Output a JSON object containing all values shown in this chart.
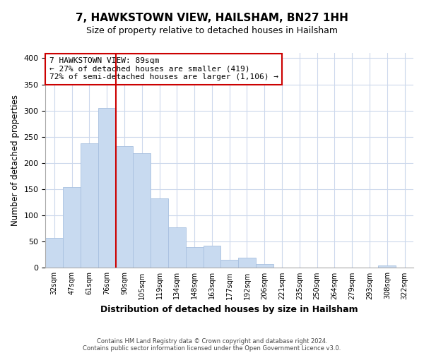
{
  "title": "7, HAWKSTOWN VIEW, HAILSHAM, BN27 1HH",
  "subtitle": "Size of property relative to detached houses in Hailsham",
  "xlabel": "Distribution of detached houses by size in Hailsham",
  "ylabel": "Number of detached properties",
  "bar_labels": [
    "32sqm",
    "47sqm",
    "61sqm",
    "76sqm",
    "90sqm",
    "105sqm",
    "119sqm",
    "134sqm",
    "148sqm",
    "163sqm",
    "177sqm",
    "192sqm",
    "206sqm",
    "221sqm",
    "235sqm",
    "250sqm",
    "264sqm",
    "279sqm",
    "293sqm",
    "308sqm",
    "322sqm"
  ],
  "bar_values": [
    57,
    154,
    238,
    305,
    232,
    219,
    133,
    78,
    40,
    42,
    15,
    20,
    7,
    0,
    0,
    0,
    0,
    0,
    0,
    4,
    0
  ],
  "bar_color": "#c8daf0",
  "bar_edge_color": "#a8c0e0",
  "vline_x": 4,
  "vline_color": "#cc0000",
  "ylim": [
    0,
    410
  ],
  "yticks": [
    0,
    50,
    100,
    150,
    200,
    250,
    300,
    350,
    400
  ],
  "annotation_line1": "7 HAWKSTOWN VIEW: 89sqm",
  "annotation_line2": "← 27% of detached houses are smaller (419)",
  "annotation_line3": "72% of semi-detached houses are larger (1,106) →",
  "annotation_box_edge": "#cc0000",
  "footer_line1": "Contains HM Land Registry data © Crown copyright and database right 2024.",
  "footer_line2": "Contains public sector information licensed under the Open Government Licence v3.0.",
  "background_color": "#ffffff",
  "grid_color": "#ccd8ec"
}
